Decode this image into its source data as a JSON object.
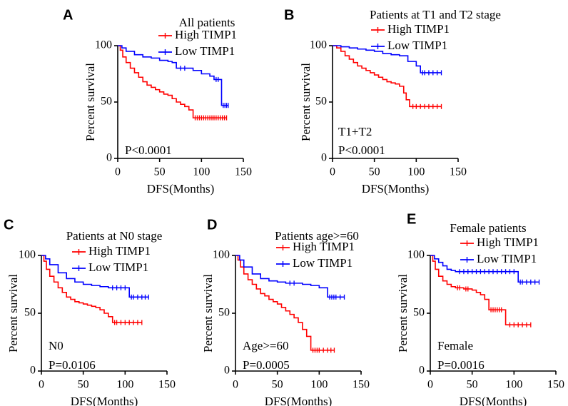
{
  "chart_data": [
    {
      "panel": "A",
      "type": "line",
      "title": "All patients",
      "xlabel": "DFS(Months)",
      "ylabel": "Percent survival",
      "xlim": [
        0,
        150
      ],
      "ylim": [
        0,
        100
      ],
      "xticks": [
        "0",
        "50",
        "100",
        "150"
      ],
      "yticks": [
        "0",
        "50",
        "100"
      ],
      "annotations": [
        "P<0.0001"
      ],
      "legend_position": "top-right",
      "series": [
        {
          "name": "High TIMP1",
          "color": "#ff0000",
          "x": [
            0,
            3,
            6,
            10,
            15,
            20,
            25,
            30,
            35,
            40,
            45,
            50,
            55,
            60,
            65,
            70,
            75,
            80,
            85,
            90,
            95,
            100,
            105,
            110,
            115,
            120,
            125,
            130
          ],
          "y": [
            100,
            96,
            90,
            85,
            80,
            76,
            72,
            68,
            65,
            63,
            61,
            59,
            57,
            56,
            53,
            50,
            48,
            46,
            43,
            36,
            36,
            36,
            36,
            36,
            36,
            36,
            36,
            36
          ]
        },
        {
          "name": "Low TIMP1",
          "color": "#0000ff",
          "x": [
            0,
            5,
            10,
            20,
            30,
            40,
            50,
            60,
            65,
            70,
            80,
            90,
            100,
            110,
            115,
            120,
            124,
            128,
            132
          ],
          "y": [
            100,
            98,
            95,
            92,
            90,
            89,
            87,
            86,
            85,
            80,
            80,
            78,
            75,
            73,
            70,
            70,
            47,
            47,
            47
          ]
        }
      ]
    },
    {
      "panel": "B",
      "type": "line",
      "title": "Patients at T1 and T2 stage",
      "xlabel": "DFS(Months)",
      "ylabel": "Percent survival",
      "xlim": [
        0,
        150
      ],
      "ylim": [
        0,
        100
      ],
      "xticks": [
        "0",
        "50",
        "100",
        "150"
      ],
      "yticks": [
        "0",
        "50",
        "100"
      ],
      "annotations": [
        "T1+T2",
        "P<0.0001"
      ],
      "legend_position": "top-right",
      "series": [
        {
          "name": "High TIMP1",
          "color": "#ff0000",
          "x": [
            0,
            5,
            10,
            15,
            20,
            25,
            30,
            35,
            40,
            45,
            50,
            55,
            60,
            65,
            70,
            75,
            80,
            85,
            88,
            92,
            100,
            110,
            120,
            130
          ],
          "y": [
            100,
            98,
            95,
            91,
            88,
            85,
            82,
            80,
            78,
            76,
            74,
            72,
            70,
            68,
            67,
            66,
            64,
            58,
            52,
            46,
            46,
            46,
            46,
            46
          ]
        },
        {
          "name": "Low TIMP1",
          "color": "#0000ff",
          "x": [
            0,
            10,
            20,
            30,
            40,
            50,
            60,
            70,
            80,
            90,
            100,
            105,
            110,
            120,
            130
          ],
          "y": [
            100,
            99,
            98,
            97,
            96,
            95,
            93,
            92,
            91,
            86,
            82,
            76,
            76,
            76,
            76
          ]
        }
      ]
    },
    {
      "panel": "C",
      "type": "line",
      "title": "Patients at N0 stage",
      "xlabel": "DFS(Months)",
      "ylabel": "Percent survival",
      "xlim": [
        0,
        150
      ],
      "ylim": [
        0,
        100
      ],
      "xticks": [
        "0",
        "50",
        "100",
        "150"
      ],
      "yticks": [
        "0",
        "50",
        "100"
      ],
      "annotations": [
        "N0",
        "P=0.0106"
      ],
      "legend_position": "top-right",
      "series": [
        {
          "name": "High TIMP1",
          "color": "#ff0000",
          "x": [
            0,
            3,
            6,
            10,
            15,
            20,
            25,
            30,
            35,
            40,
            45,
            50,
            55,
            60,
            65,
            70,
            75,
            80,
            85,
            90,
            100,
            110,
            120
          ],
          "y": [
            100,
            95,
            88,
            82,
            77,
            72,
            68,
            64,
            62,
            60,
            59,
            58,
            57,
            56,
            55,
            53,
            50,
            47,
            42,
            42,
            42,
            42,
            42
          ]
        },
        {
          "name": "Low TIMP1",
          "color": "#0000ff",
          "x": [
            0,
            5,
            10,
            20,
            30,
            40,
            50,
            60,
            70,
            80,
            90,
            100,
            105,
            110,
            120,
            128
          ],
          "y": [
            100,
            97,
            92,
            85,
            80,
            77,
            75,
            74,
            73,
            72,
            72,
            72,
            64,
            64,
            64,
            64
          ]
        }
      ]
    },
    {
      "panel": "D",
      "type": "line",
      "title": "Patients age>=60",
      "xlabel": "DFS(Months)",
      "ylabel": "Percent survival",
      "xlim": [
        0,
        150
      ],
      "ylim": [
        0,
        100
      ],
      "xticks": [
        "0",
        "50",
        "100",
        "150"
      ],
      "yticks": [
        "0",
        "50",
        "100"
      ],
      "annotations": [
        "Age>=60",
        "P=0.0005"
      ],
      "legend_position": "top-right",
      "series": [
        {
          "name": "High TIMP1",
          "color": "#ff0000",
          "x": [
            0,
            3,
            6,
            10,
            15,
            20,
            25,
            30,
            35,
            40,
            45,
            50,
            55,
            60,
            65,
            70,
            75,
            80,
            85,
            90,
            95,
            100,
            110,
            118
          ],
          "y": [
            100,
            96,
            90,
            84,
            79,
            75,
            71,
            67,
            65,
            62,
            60,
            58,
            55,
            52,
            49,
            46,
            42,
            36,
            30,
            18,
            18,
            18,
            18,
            18
          ]
        },
        {
          "name": "Low TIMP1",
          "color": "#0000ff",
          "x": [
            0,
            5,
            10,
            20,
            30,
            40,
            50,
            60,
            70,
            80,
            90,
            100,
            110,
            115,
            120,
            130
          ],
          "y": [
            100,
            96,
            90,
            84,
            80,
            78,
            77,
            76,
            76,
            75,
            74,
            72,
            64,
            64,
            64,
            64
          ]
        }
      ]
    },
    {
      "panel": "E",
      "type": "line",
      "title": "Female patients",
      "xlabel": "DFS(Months)",
      "ylabel": "Percent survival",
      "xlim": [
        0,
        150
      ],
      "ylim": [
        0,
        100
      ],
      "xticks": [
        "0",
        "50",
        "100",
        "150"
      ],
      "yticks": [
        "0",
        "50",
        "100"
      ],
      "annotations": [
        "Female",
        "P=0.0016"
      ],
      "legend_position": "top-right",
      "series": [
        {
          "name": "High TIMP1",
          "color": "#ff0000",
          "x": [
            0,
            3,
            6,
            10,
            15,
            20,
            25,
            30,
            35,
            40,
            45,
            50,
            55,
            60,
            65,
            70,
            75,
            80,
            85,
            90,
            100,
            110,
            120
          ],
          "y": [
            100,
            95,
            88,
            82,
            78,
            75,
            73,
            72,
            72,
            71,
            71,
            70,
            68,
            66,
            62,
            53,
            53,
            53,
            53,
            40,
            40,
            40,
            40
          ]
        },
        {
          "name": "Low TIMP1",
          "color": "#0000ff",
          "x": [
            0,
            5,
            10,
            15,
            20,
            25,
            30,
            40,
            50,
            60,
            70,
            80,
            90,
            100,
            105,
            110,
            120,
            130
          ],
          "y": [
            100,
            97,
            94,
            91,
            88,
            87,
            86,
            86,
            86,
            86,
            86,
            86,
            86,
            86,
            77,
            77,
            77,
            77
          ]
        }
      ]
    }
  ]
}
